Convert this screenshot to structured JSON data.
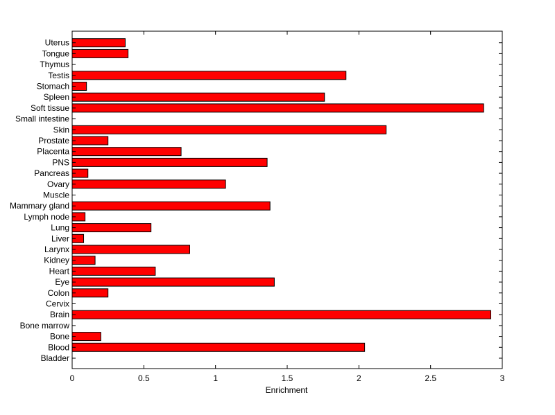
{
  "chart_data": {
    "type": "bar",
    "orientation": "horizontal",
    "title": "",
    "xlabel": "Enrichment",
    "ylabel": "",
    "xlim": [
      0,
      3
    ],
    "xticks": [
      0,
      0.5,
      1,
      1.5,
      2,
      2.5,
      3
    ],
    "xtick_labels": [
      "0",
      "0.5",
      "1",
      "1.5",
      "2",
      "2.5",
      "3"
    ],
    "grid": false,
    "bar_color": "#ff0000",
    "bar_edge_color": "#000000",
    "categories": [
      "Bladder",
      "Blood",
      "Bone",
      "Bone marrow",
      "Brain",
      "Cervix",
      "Colon",
      "Eye",
      "Heart",
      "Kidney",
      "Larynx",
      "Liver",
      "Lung",
      "Lymph node",
      "Mammary gland",
      "Muscle",
      "Ovary",
      "Pancreas",
      "PNS",
      "Placenta",
      "Prostate",
      "Skin",
      "Small intestine",
      "Soft tissue",
      "Spleen",
      "Stomach",
      "Testis",
      "Thymus",
      "Tongue",
      "Uterus"
    ],
    "values": [
      0,
      2.04,
      0.2,
      0,
      2.92,
      0,
      0.25,
      1.41,
      0.58,
      0.16,
      0.82,
      0.08,
      0.55,
      0.09,
      1.38,
      0,
      1.07,
      0.11,
      1.36,
      0.76,
      0.25,
      2.19,
      0,
      2.87,
      1.76,
      0.1,
      1.91,
      0,
      0.39,
      0.37
    ]
  }
}
